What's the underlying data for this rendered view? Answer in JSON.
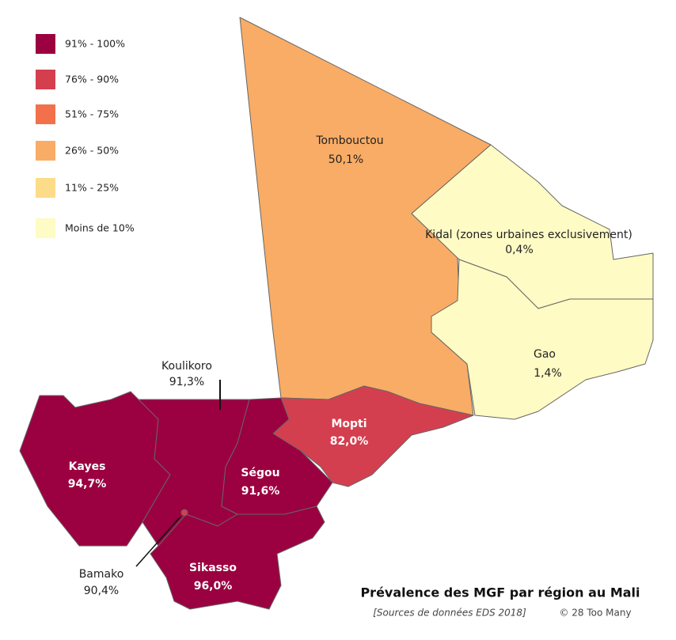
{
  "title": "Prévalence des MGF par région au Mali",
  "source": "[Sources de données EDS 2018]",
  "copyright": "© 28 Too Many",
  "legend": [
    {
      "label": "91% - 100%",
      "color": "#9b0040"
    },
    {
      "label": "76% - 90%",
      "color": "#d43f4f"
    },
    {
      "label": "51% - 75%",
      "color": "#f2714a"
    },
    {
      "label": "26% - 50%",
      "color": "#f9ac65"
    },
    {
      "label": "11% - 25%",
      "color": "#fddc89"
    },
    {
      "label": "Moins de 10%",
      "color": "#fefbc4"
    }
  ],
  "regions": [
    {
      "name": "Tombouctou",
      "value": "50,1%",
      "color": "#f9ac65"
    },
    {
      "name": "Kidal (zones urbaines exclusivement)",
      "value": "0,4%",
      "color": "#fefbc4"
    },
    {
      "name": "Gao",
      "value": "1,4%",
      "color": "#fefbc4"
    },
    {
      "name": "Mopti",
      "value": "82,0%",
      "color": "#d43f4f"
    },
    {
      "name": "Kayes",
      "value": "94,7%",
      "color": "#9b0040"
    },
    {
      "name": "Koulikoro",
      "value": "91,3%",
      "color": "#9b0040"
    },
    {
      "name": "Ségou",
      "value": "91,6%",
      "color": "#9b0040"
    },
    {
      "name": "Sikasso",
      "value": "96,0%",
      "color": "#9b0040"
    },
    {
      "name": "Bamako",
      "value": "90,4%",
      "color": "#d43f4f"
    }
  ]
}
